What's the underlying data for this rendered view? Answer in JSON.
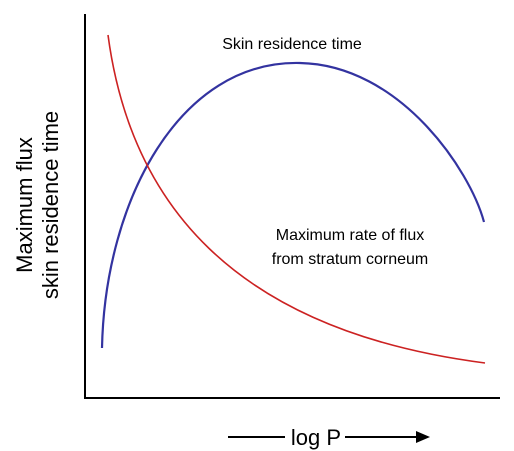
{
  "y_axis_label": [
    "Maximum flux",
    "skin residence time"
  ],
  "x_axis_label": "log P",
  "annotations": {
    "residence": "Skin residence time",
    "flux": [
      "Maximum rate of flux",
      "from stratum corneum"
    ]
  }
}
